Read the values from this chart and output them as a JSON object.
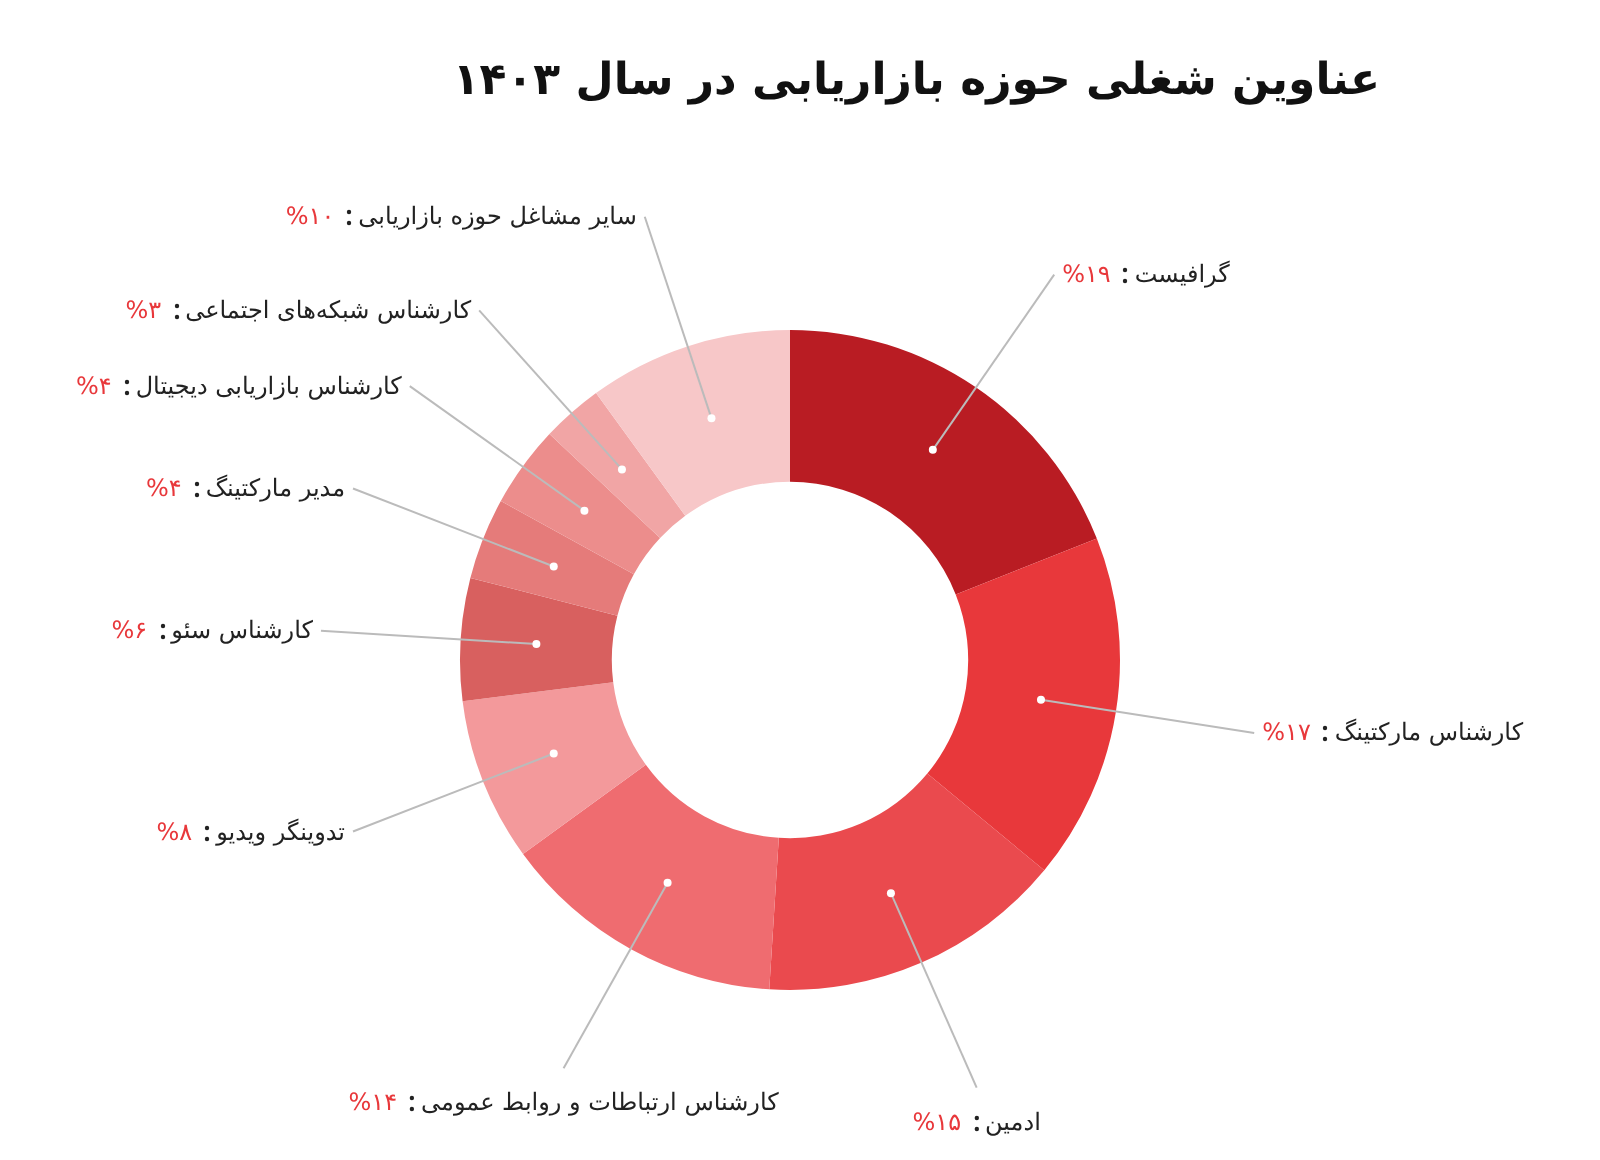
{
  "chart_data": {
    "type": "donut",
    "title": "عناوین شغلی حوزه بازاریابی در سال ۱۴۰۳",
    "categories": [
      "گرافیست",
      "کارشناس مارکتینگ",
      "ادمین",
      "کارشناس ارتباطات و روابط عمومی",
      "تدوینگر ویدیو",
      "کارشناس سئو",
      "مدیر مارکتینگ",
      "کارشناس بازاریابی دیجیتال",
      "کارشناس شبکه‌های اجتماعی",
      "سایر مشاغل حوزه بازاریابی"
    ],
    "values": [
      19,
      17,
      15,
      14,
      8,
      6,
      4,
      4,
      3,
      10
    ],
    "colors": [
      "#b91c23",
      "#e8383b",
      "#ea4a4e",
      "#ef6c70",
      "#f3999b",
      "#d8605f",
      "#e57b7a",
      "#ec8d8c",
      "#f1a5a5",
      "#f7c7c8"
    ],
    "value_labels": [
      "۱۹%",
      "۱۷%",
      "۱۵%",
      "۱۴%",
      "۸%",
      "۶%",
      "۴%",
      "۴%",
      "۳%",
      "۱۰%"
    ]
  }
}
